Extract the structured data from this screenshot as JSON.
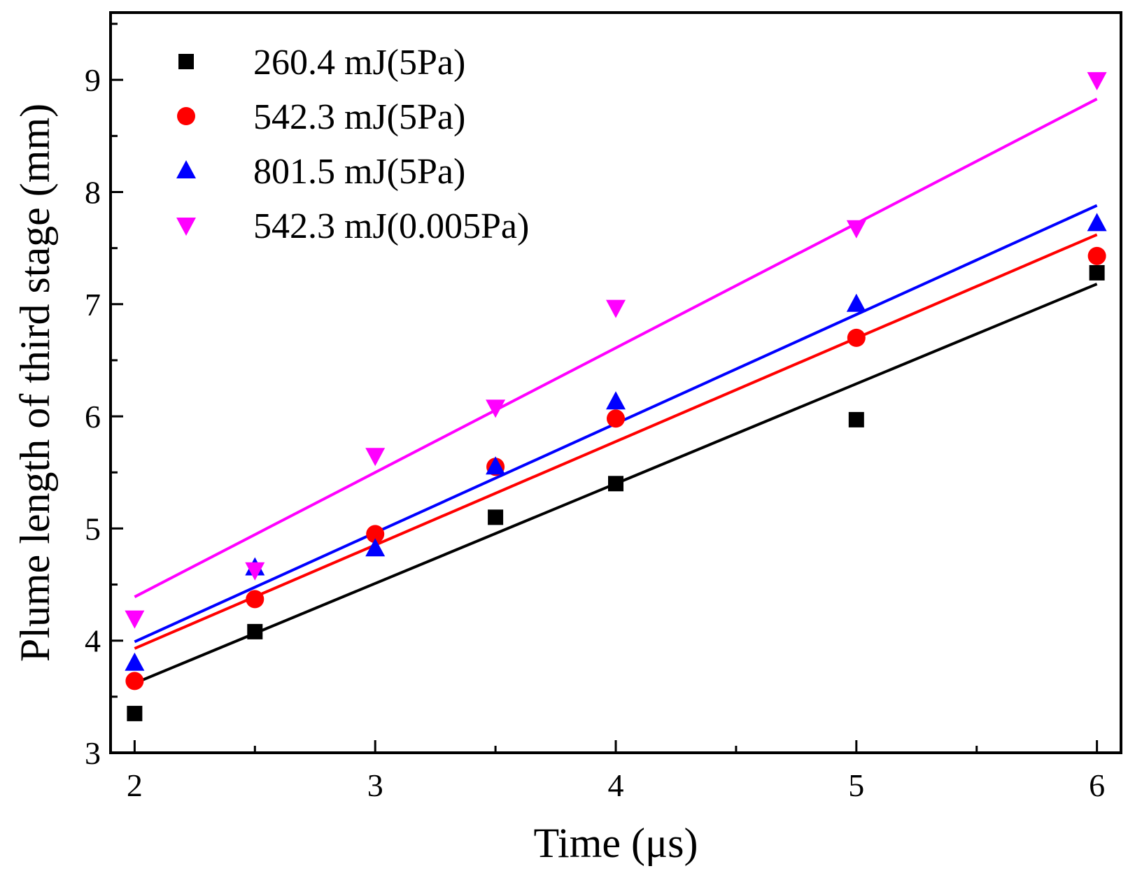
{
  "chart_data": {
    "type": "scatter",
    "xlabel": "Time (μs)",
    "ylabel": "Plume length of third stage (mm)",
    "xlim": [
      1.9,
      6.1
    ],
    "ylim": [
      3,
      9.6
    ],
    "x_ticks": [
      "2",
      "3",
      "4",
      "5",
      "6"
    ],
    "y_ticks": [
      "3",
      "4",
      "5",
      "6",
      "7",
      "8",
      "9"
    ],
    "legend_position": "top-left",
    "grid": false,
    "series": [
      {
        "name": "260.4 mJ(5Pa)",
        "color": "#000000",
        "marker": "square",
        "x": [
          2,
          2.5,
          3.5,
          4,
          5,
          6
        ],
        "y": [
          3.35,
          4.08,
          5.1,
          5.4,
          5.97,
          7.28
        ],
        "fit_line": {
          "x": [
            2,
            6
          ],
          "y": [
            3.62,
            7.18
          ]
        }
      },
      {
        "name": "542.3 mJ(5Pa)",
        "color": "#ff0000",
        "marker": "circle",
        "x": [
          2,
          2.5,
          3,
          3.5,
          4,
          5,
          6
        ],
        "y": [
          3.64,
          4.37,
          4.95,
          5.55,
          5.98,
          6.7,
          7.43
        ],
        "fit_line": {
          "x": [
            2,
            6
          ],
          "y": [
            3.93,
            7.62
          ]
        }
      },
      {
        "name": "801.5 mJ(5Pa)",
        "color": "#0000ff",
        "marker": "triangle-up",
        "x": [
          2,
          2.5,
          3,
          3.5,
          4,
          5,
          6
        ],
        "y": [
          3.8,
          4.65,
          4.82,
          5.55,
          6.13,
          7.0,
          7.72
        ],
        "fit_line": {
          "x": [
            2,
            6
          ],
          "y": [
            3.99,
            7.88
          ]
        }
      },
      {
        "name": "542.3 mJ(0.005Pa)",
        "color": "#ff00ff",
        "marker": "triangle-down",
        "x": [
          2,
          2.5,
          3,
          3.5,
          4,
          5,
          6
        ],
        "y": [
          4.2,
          4.63,
          5.65,
          6.08,
          6.97,
          7.68,
          9.0
        ],
        "fit_line": {
          "x": [
            2,
            6
          ],
          "y": [
            4.39,
            8.83
          ]
        }
      }
    ]
  }
}
